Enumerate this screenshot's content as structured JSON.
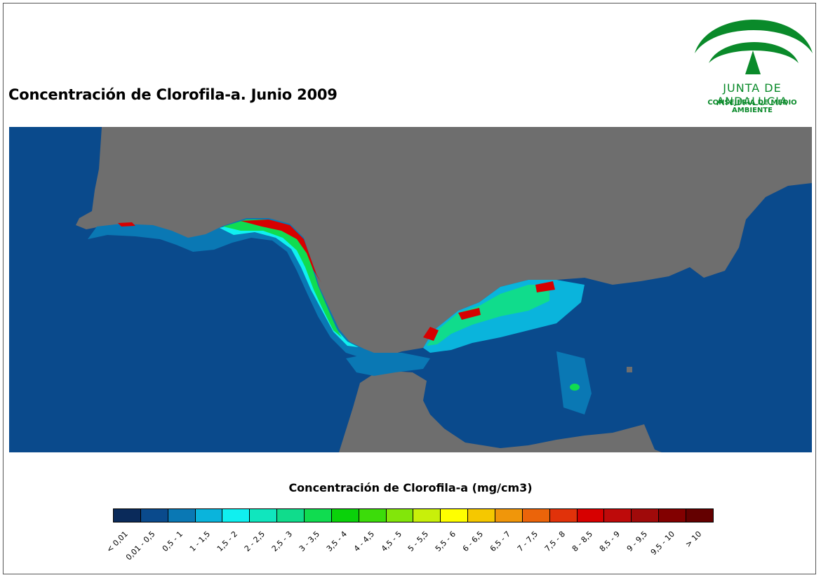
{
  "title": "Concentración de Clorofila-a. Junio 2009",
  "logo": {
    "name": "JUNTA DE ANDALUCIA",
    "subtitle": "CONSEJERÍA DE MEDIO AMBIENTE",
    "color": "#0a8a2a"
  },
  "map": {
    "land_color": "#6e6e6e",
    "sea_color": "#0a4a8c"
  },
  "legend": {
    "title": "Concentración de Clorofila-a (mg/cm3)",
    "classes": [
      {
        "label": "< 0,01",
        "color": "#0a2a5a"
      },
      {
        "label": "0,01 - 0,5",
        "color": "#0a4a8c"
      },
      {
        "label": "0,5 - 1",
        "color": "#0a78b4"
      },
      {
        "label": "1 - 1,5",
        "color": "#0ab4dc"
      },
      {
        "label": "1,5 - 2",
        "color": "#10f0f0"
      },
      {
        "label": "2 - 2,5",
        "color": "#10e6be"
      },
      {
        "label": "2,5 - 3",
        "color": "#10dc8c"
      },
      {
        "label": "3 - 3,5",
        "color": "#10dc50"
      },
      {
        "label": "3,5 - 4",
        "color": "#0ad20a"
      },
      {
        "label": "4 - 4,5",
        "color": "#3cdc0a"
      },
      {
        "label": "4,5 - 5",
        "color": "#82e60a"
      },
      {
        "label": "5 - 5,5",
        "color": "#c8f00a"
      },
      {
        "label": "5,5 - 6",
        "color": "#ffff00"
      },
      {
        "label": "6 - 6,5",
        "color": "#f5c800"
      },
      {
        "label": "6,5 - 7",
        "color": "#f0960a"
      },
      {
        "label": "7 - 7,5",
        "color": "#eb640a"
      },
      {
        "label": "7,5 - 8",
        "color": "#e1320a"
      },
      {
        "label": "8 - 8,5",
        "color": "#d70000"
      },
      {
        "label": "8,5 - 9",
        "color": "#be0a0a"
      },
      {
        "label": "9 - 9,5",
        "color": "#a00a0a"
      },
      {
        "label": "9,5 - 10",
        "color": "#820000"
      },
      {
        "label": "> 10",
        "color": "#640000"
      }
    ]
  }
}
